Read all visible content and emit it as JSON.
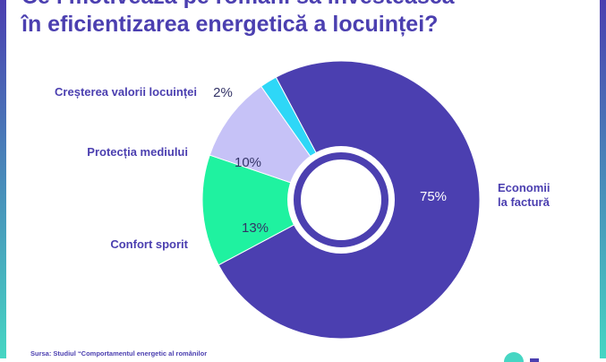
{
  "title": {
    "line1": "Ce i motivează pe români să investească",
    "line2": "în eficientizarea energetică a locuinței?"
  },
  "chart_data": {
    "type": "pie",
    "title": "Ce i motivează pe români să investească în eficientizarea energetică a locuinței?",
    "slices": [
      {
        "label": "Economii la factură",
        "label_lines": [
          "Economii",
          "la factură"
        ],
        "value": 75,
        "value_label": "75%",
        "color": "#4b3fb0"
      },
      {
        "label": "Confort sporit",
        "value": 13,
        "value_label": "13%",
        "color": "#1ff2a0"
      },
      {
        "label": "Protecția mediului",
        "value": 10,
        "value_label": "10%",
        "color": "#c6c2f7"
      },
      {
        "label": "Creșterea valorii locuinței",
        "value": 2,
        "value_label": "2%",
        "color": "#2ed7f7"
      }
    ]
  },
  "source": "Sursa: Studiul “Comportamentul energetic al românilor",
  "logo_icon": "leaf-logo-icon"
}
